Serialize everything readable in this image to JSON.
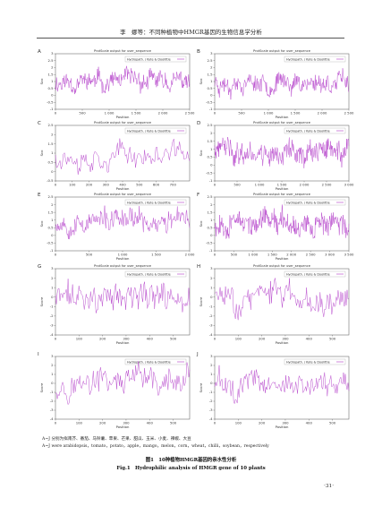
{
  "header": {
    "running_head": "李　娜等：不同种植物中HMGR基因的生物信息学分析"
  },
  "legend": {
    "zh": "A~J 分别为拟南芥、番茄、马铃薯、苹果、芒果、甜瓜、玉米、小麦、辣椒、大豆",
    "en": "A~J were arabidopsis，tomato，potato，apple，mango，melon，corn，wheat，chilli，soybean，respectively"
  },
  "caption": {
    "zh": "图1　10种植物HMGR基因的亲水性分析",
    "en": "Fig.1　Hydrophilic analysis of HMGR gene of 10 plants"
  },
  "page_number": "·31·",
  "colors": {
    "trace": "#b23cc8",
    "frame": "#555555"
  },
  "chart_data": [
    {
      "panel": "A",
      "type": "line",
      "title": "ProtScale output for user_sequence",
      "legend": "Hydropath. / Kyte & Doolittle",
      "xlabel": "Position",
      "ylabel": "Sco",
      "ylim": [
        -1.0,
        3.0
      ],
      "yticks": [
        "3",
        "2.5",
        "2",
        "1.5",
        "1",
        "0.5",
        "0",
        "-0.5",
        "-1"
      ],
      "xlim": [
        0,
        2500
      ],
      "xticks": [
        0,
        500,
        1000,
        1500,
        2000,
        2500
      ],
      "xtick_labels": [
        "0",
        "500",
        "1 000",
        "1 500",
        "2 000",
        "2 500"
      ],
      "trace": {
        "points": 260,
        "mean": 1.0,
        "amp": 0.55,
        "seed": 11
      }
    },
    {
      "panel": "B",
      "type": "line",
      "title": "ProtScale output for user_sequence",
      "legend": "Hydropath. / Kyte & Doolittle",
      "xlabel": "Position",
      "ylabel": "Sco",
      "ylim": [
        -1.0,
        3.0
      ],
      "yticks": [
        "3",
        "2.5",
        "2",
        "1.5",
        "1",
        "0.5",
        "0",
        "-0.5",
        "-1"
      ],
      "xlim": [
        0,
        2500
      ],
      "xticks": [
        0,
        500,
        1000,
        1500,
        2000,
        2500
      ],
      "xtick_labels": [
        "0",
        "500",
        "1 000",
        "1 500",
        "2 000",
        "2 500"
      ],
      "trace": {
        "points": 260,
        "mean": 0.95,
        "amp": 0.55,
        "seed": 23
      }
    },
    {
      "panel": "C",
      "type": "line",
      "title": "ProtScale output for user_sequence",
      "legend": "Hydropath. / Kyte & Doolittle",
      "xlabel": "Position",
      "ylabel": "Sco",
      "ylim": [
        -0.5,
        2.5
      ],
      "yticks": [
        "2.5",
        "2",
        "1.5",
        "1",
        "0.5",
        "0",
        "-0.5"
      ],
      "xlim": [
        0,
        800
      ],
      "xticks": [
        0,
        100,
        200,
        300,
        400,
        500,
        600,
        700
      ],
      "xtick_labels": [
        "0",
        "100",
        "200",
        "300",
        "400",
        "500",
        "600",
        "700"
      ],
      "trace": {
        "points": 120,
        "mean": 0.9,
        "amp": 0.5,
        "seed": 37
      }
    },
    {
      "panel": "D",
      "type": "line",
      "title": "ProtScale output for user_sequence",
      "legend": "Hydropath. / Kyte & Doolittle",
      "xlabel": "Position",
      "ylabel": "Sco",
      "ylim": [
        -1.0,
        2.5
      ],
      "yticks": [
        "2.5",
        "2",
        "1.5",
        "1",
        "0.5",
        "0",
        "-0.5",
        "-1"
      ],
      "xlim": [
        0,
        3000
      ],
      "xticks": [
        0,
        500,
        1000,
        1500,
        2000,
        2500,
        3000
      ],
      "xtick_labels": [
        "0",
        "500",
        "1 000",
        "1 500",
        "2 000",
        "2 500",
        "3 000"
      ],
      "trace": {
        "points": 300,
        "mean": 0.85,
        "amp": 0.6,
        "seed": 41
      }
    },
    {
      "panel": "E",
      "type": "line",
      "title": "ProtScale output for user_sequence",
      "legend": "Hydropath. / Kyte & Doolittle",
      "xlabel": "Position",
      "ylabel": "Sco",
      "ylim": [
        -1.0,
        2.5
      ],
      "yticks": [
        "2.5",
        "2",
        "1.5",
        "1",
        "0.5",
        "0",
        "-0.5",
        "-1"
      ],
      "xlim": [
        0,
        2000
      ],
      "xticks": [
        0,
        500,
        1000,
        1500,
        2000
      ],
      "xtick_labels": [
        "0",
        "500",
        "1 000",
        "1 500",
        "2 000"
      ],
      "trace": {
        "points": 230,
        "mean": 0.9,
        "amp": 0.55,
        "seed": 53
      }
    },
    {
      "panel": "F",
      "type": "line",
      "title": "ProtScale output for user_sequence",
      "legend": "Hydropath. / Kyte & Doolittle",
      "xlabel": "Position",
      "ylabel": "Sco",
      "ylim": [
        -1.0,
        2.5
      ],
      "yticks": [
        "2.5",
        "2",
        "1.5",
        "1",
        "0.5",
        "0",
        "-0.5",
        "-1"
      ],
      "xlim": [
        0,
        3500
      ],
      "xticks": [
        0,
        500,
        1000,
        1500,
        2000,
        2500,
        3000,
        3500
      ],
      "xtick_labels": [
        "0",
        "500",
        "1 000",
        "1 500",
        "2 000",
        "2 500",
        "3 000",
        "3 500"
      ],
      "trace": {
        "points": 320,
        "mean": 0.85,
        "amp": 0.6,
        "seed": 67
      }
    },
    {
      "panel": "G",
      "type": "line",
      "title": "ProtScale output for user_sequence",
      "legend": "Hydropath. / Kyte & Doolittle",
      "xlabel": "Position",
      "ylabel": "Score",
      "ylim": [
        -4,
        3
      ],
      "yticks": [
        "3",
        "2",
        "1",
        "0",
        "-1",
        "-2",
        "-3",
        "-4"
      ],
      "xlim": [
        0,
        570
      ],
      "xticks": [
        0,
        100,
        200,
        300,
        400,
        500
      ],
      "xtick_labels": [
        "0",
        "100",
        "200",
        "300",
        "400",
        "500"
      ],
      "trace": {
        "points": 150,
        "mean": 0.0,
        "amp": 1.2,
        "seed": 71
      }
    },
    {
      "panel": "H",
      "type": "line",
      "title": "ProtScale output for user_sequence",
      "legend": "Hydropath. / Kyte & Doolittle",
      "xlabel": "Position",
      "ylabel": "Score",
      "ylim": [
        -4,
        3
      ],
      "yticks": [
        "3",
        "2",
        "1",
        "0",
        "-1",
        "-2",
        "-3",
        "-4"
      ],
      "xlim": [
        0,
        570
      ],
      "xticks": [
        0,
        100,
        200,
        300,
        400,
        500
      ],
      "xtick_labels": [
        "0",
        "100",
        "200",
        "300",
        "400",
        "500"
      ],
      "trace": {
        "points": 150,
        "mean": 0.0,
        "amp": 1.2,
        "seed": 83
      }
    },
    {
      "panel": "I",
      "type": "line",
      "title": "",
      "legend": "Hydropath. / Kyte & Doolittle",
      "xlabel": "Position",
      "ylabel": "Score",
      "ylim": [
        -4,
        3
      ],
      "yticks": [
        "3",
        "2",
        "1",
        "0",
        "-1",
        "-2",
        "-3",
        "-4"
      ],
      "xlim": [
        0,
        570
      ],
      "xticks": [
        0,
        100,
        200,
        300,
        400,
        500
      ],
      "xtick_labels": [
        "0",
        "100",
        "200",
        "300",
        "400",
        "500"
      ],
      "trace": {
        "points": 150,
        "mean": 0.0,
        "amp": 1.2,
        "seed": 97
      }
    },
    {
      "panel": "J",
      "type": "line",
      "title": "",
      "legend": "Hydropath. / Kyte & Doolittle",
      "xlabel": "Position",
      "ylabel": "Score",
      "ylim": [
        -4,
        3
      ],
      "yticks": [
        "3",
        "2",
        "1",
        "0",
        "-1",
        "-2",
        "-3",
        "-4"
      ],
      "xlim": [
        0,
        570
      ],
      "xticks": [
        0,
        100,
        200,
        300,
        400,
        500
      ],
      "xtick_labels": [
        "0",
        "100",
        "200",
        "300",
        "400",
        "500"
      ],
      "trace": {
        "points": 150,
        "mean": 0.0,
        "amp": 1.2,
        "seed": 101
      }
    }
  ]
}
